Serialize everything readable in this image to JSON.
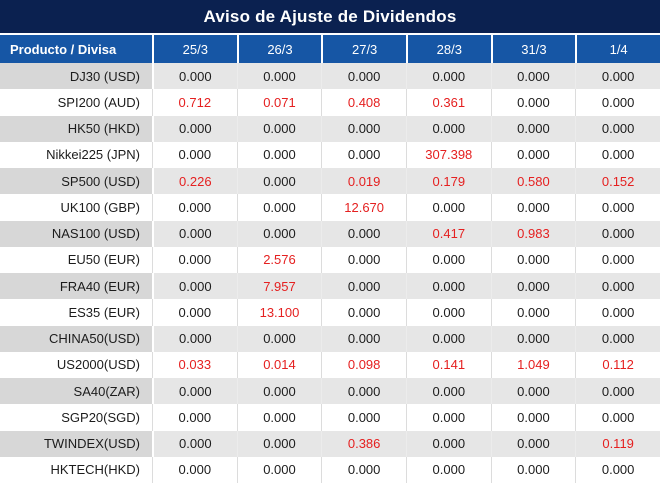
{
  "title": "Aviso de Ajuste de Dividendos",
  "colors": {
    "title_bg": "#0B2150",
    "header_bg": "#1656A5",
    "row_gray_label": "#D7D7D7",
    "row_gray_value": "#E6E6E6",
    "value_zero_text": "#1C1C1C",
    "value_nonzero_red": "#E52020",
    "header_text": "#FFFFFF"
  },
  "chart_data": {
    "type": "table",
    "title": "Aviso de Ajuste de Dividendos",
    "columns": [
      "Producto / Divisa",
      "25/3",
      "26/3",
      "27/3",
      "28/3",
      "31/3",
      "1/4"
    ],
    "rows": [
      {
        "product": "DJ30 (USD)",
        "values": [
          "0.000",
          "0.000",
          "0.000",
          "0.000",
          "0.000",
          "0.000"
        ]
      },
      {
        "product": "SPI200 (AUD)",
        "values": [
          "0.712",
          "0.071",
          "0.408",
          "0.361",
          "0.000",
          "0.000"
        ]
      },
      {
        "product": "HK50 (HKD)",
        "values": [
          "0.000",
          "0.000",
          "0.000",
          "0.000",
          "0.000",
          "0.000"
        ]
      },
      {
        "product": "Nikkei225 (JPN)",
        "values": [
          "0.000",
          "0.000",
          "0.000",
          "307.398",
          "0.000",
          "0.000"
        ]
      },
      {
        "product": "SP500 (USD)",
        "values": [
          "0.226",
          "0.000",
          "0.019",
          "0.179",
          "0.580",
          "0.152"
        ]
      },
      {
        "product": "UK100 (GBP)",
        "values": [
          "0.000",
          "0.000",
          "12.670",
          "0.000",
          "0.000",
          "0.000"
        ]
      },
      {
        "product": "NAS100 (USD)",
        "values": [
          "0.000",
          "0.000",
          "0.000",
          "0.417",
          "0.983",
          "0.000"
        ]
      },
      {
        "product": "EU50 (EUR)",
        "values": [
          "0.000",
          "2.576",
          "0.000",
          "0.000",
          "0.000",
          "0.000"
        ]
      },
      {
        "product": "FRA40 (EUR)",
        "values": [
          "0.000",
          "7.957",
          "0.000",
          "0.000",
          "0.000",
          "0.000"
        ]
      },
      {
        "product": "ES35 (EUR)",
        "values": [
          "0.000",
          "13.100",
          "0.000",
          "0.000",
          "0.000",
          "0.000"
        ]
      },
      {
        "product": "CHINA50(USD)",
        "values": [
          "0.000",
          "0.000",
          "0.000",
          "0.000",
          "0.000",
          "0.000"
        ]
      },
      {
        "product": "US2000(USD)",
        "values": [
          "0.033",
          "0.014",
          "0.098",
          "0.141",
          "1.049",
          "0.112"
        ]
      },
      {
        "product": "SA40(ZAR)",
        "values": [
          "0.000",
          "0.000",
          "0.000",
          "0.000",
          "0.000",
          "0.000"
        ]
      },
      {
        "product": "SGP20(SGD)",
        "values": [
          "0.000",
          "0.000",
          "0.000",
          "0.000",
          "0.000",
          "0.000"
        ]
      },
      {
        "product": "TWINDEX(USD)",
        "values": [
          "0.000",
          "0.000",
          "0.386",
          "0.000",
          "0.000",
          "0.119"
        ]
      },
      {
        "product": "HKTECH(HKD)",
        "values": [
          "0.000",
          "0.000",
          "0.000",
          "0.000",
          "0.000",
          "0.000"
        ]
      }
    ],
    "legend": "non-zero adjustment values rendered in red",
    "layout": "first column right-aligned product names; value columns centered; rows alternate gray/white starting gray"
  }
}
